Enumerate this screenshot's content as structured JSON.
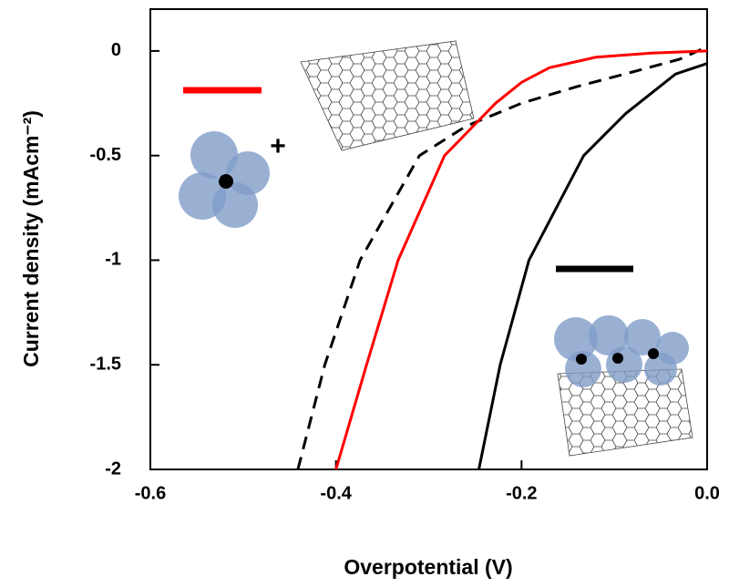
{
  "chart_data": {
    "type": "line",
    "x_label": "Overpotential (V)",
    "y_label": "Current density (mAcm⁻²)",
    "annotations": [
      "+"
    ],
    "xlim": [
      -0.6,
      0
    ],
    "ylim": [
      -2,
      0.2
    ],
    "xticks": [
      -0.6,
      -0.4,
      -0.2,
      {
        "value": 0,
        "label": "0.0"
      }
    ],
    "yticks": [
      0,
      -0.5,
      -1,
      -1.5,
      -2
    ],
    "series": [
      {
        "color": "#000000",
        "dash": true,
        "x": [
          -0.441,
          -0.412,
          -0.374,
          -0.31,
          -0.26,
          -0.2,
          -0.14,
          -0.08,
          -0.03,
          0
        ],
        "values": [
          -2,
          -1.5,
          -1,
          -0.5,
          -0.36,
          -0.25,
          -0.17,
          -0.1,
          -0.04,
          0.02
        ]
      },
      {
        "color": "#ff0000",
        "dash": false,
        "x": [
          -0.4,
          -0.367,
          -0.333,
          -0.283,
          -0.25,
          -0.228,
          -0.2,
          -0.17,
          -0.12,
          -0.06,
          0
        ],
        "values": [
          -2,
          -1.5,
          -1,
          -0.5,
          -0.35,
          -0.25,
          -0.15,
          -0.08,
          -0.03,
          -0.01,
          0
        ]
      },
      {
        "color": "#000000",
        "dash": false,
        "x": [
          -0.246,
          -0.223,
          -0.192,
          -0.133,
          -0.088,
          -0.034,
          0
        ],
        "values": [
          -2,
          -1.5,
          -1,
          -0.5,
          -0.3,
          -0.11,
          -0.06
        ]
      }
    ]
  }
}
